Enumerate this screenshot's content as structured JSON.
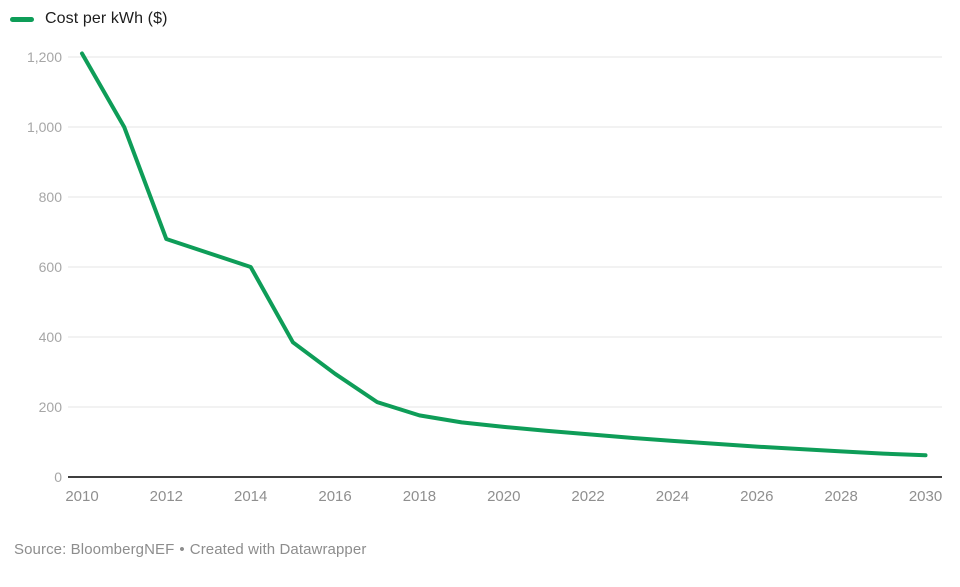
{
  "colors": {
    "line": "#0e9d58",
    "grid": "#e4e4e4",
    "axis_baseline": "#3f3f3f",
    "y_tick_text": "#a6a6a6",
    "x_tick_text": "#8f8f8f",
    "legend_text": "#1d1d1d",
    "footer_text": "#8d8d8d",
    "background": "#ffffff"
  },
  "chart_data": {
    "type": "line",
    "legend_position": "top-left",
    "grid": "horizontal",
    "xlim": [
      2010,
      2030
    ],
    "ylim": [
      0,
      1260
    ],
    "x": [
      2010,
      2011,
      2012,
      2013,
      2014,
      2015,
      2016,
      2017,
      2018,
      2019,
      2020,
      2021,
      2022,
      2023,
      2024,
      2025,
      2026,
      2027,
      2028,
      2029,
      2030
    ],
    "series": [
      {
        "name": "Cost per kWh ($)",
        "color": "#0e9d58",
        "values": [
          1210,
          1000,
          680,
          640,
          600,
          385,
          295,
          214,
          176,
          156,
          143,
          132,
          122,
          112,
          103,
          95,
          87,
          80,
          73,
          67,
          62
        ]
      }
    ],
    "x_ticks": [
      {
        "value": 2010,
        "label": "2010"
      },
      {
        "value": 2012,
        "label": "2012"
      },
      {
        "value": 2014,
        "label": "2014"
      },
      {
        "value": 2016,
        "label": "2016"
      },
      {
        "value": 2018,
        "label": "2018"
      },
      {
        "value": 2020,
        "label": "2020"
      },
      {
        "value": 2022,
        "label": "2022"
      },
      {
        "value": 2024,
        "label": "2024"
      },
      {
        "value": 2026,
        "label": "2026"
      },
      {
        "value": 2028,
        "label": "2028"
      },
      {
        "value": 2030,
        "label": "2030"
      }
    ],
    "y_ticks": [
      {
        "value": 0,
        "label": "0"
      },
      {
        "value": 200,
        "label": "200"
      },
      {
        "value": 400,
        "label": "400"
      },
      {
        "value": 600,
        "label": "600"
      },
      {
        "value": 800,
        "label": "800"
      },
      {
        "value": 1000,
        "label": "1,000"
      },
      {
        "value": 1200,
        "label": "1,200"
      }
    ]
  },
  "footer": {
    "source": "Source: BloombergNEF",
    "separator": "•",
    "credit": "Created with Datawrapper"
  }
}
